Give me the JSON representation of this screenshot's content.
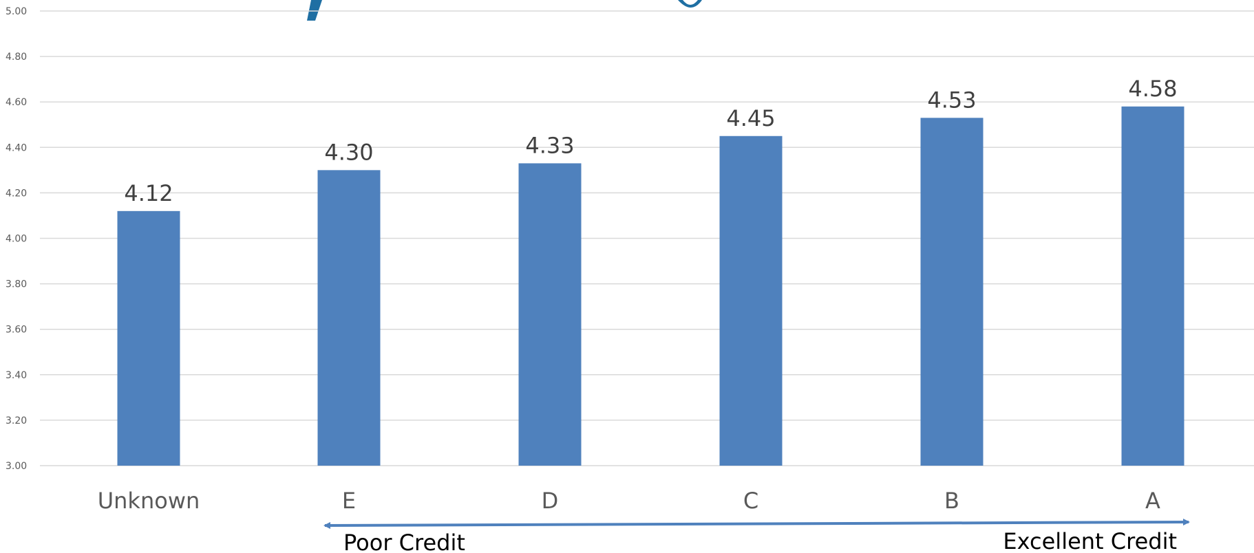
{
  "colors": {
    "bar": "#4f81bd",
    "grid": "#d9d9d9",
    "arrow": "#4f81bd",
    "title": "#1f6fa3"
  },
  "chart_data": {
    "type": "bar",
    "categories": [
      "Unknown",
      "E",
      "D",
      "C",
      "B",
      "A"
    ],
    "values": [
      4.12,
      4.3,
      4.33,
      4.45,
      4.53,
      4.58
    ],
    "data_labels": [
      "4.12",
      "4.30",
      "4.33",
      "4.45",
      "4.53",
      "4.58"
    ],
    "y_ticks": [
      "3.00",
      "3.20",
      "3.40",
      "3.60",
      "3.80",
      "4.00",
      "4.20",
      "4.40",
      "4.60",
      "4.80",
      "5.00"
    ],
    "ylim": [
      3.0,
      5.0
    ],
    "grid": true,
    "legend": "none",
    "annotations": {
      "left": "Poor Credit",
      "right": "Excellent Credit",
      "arrow": "double-headed, under categories E to A"
    }
  }
}
